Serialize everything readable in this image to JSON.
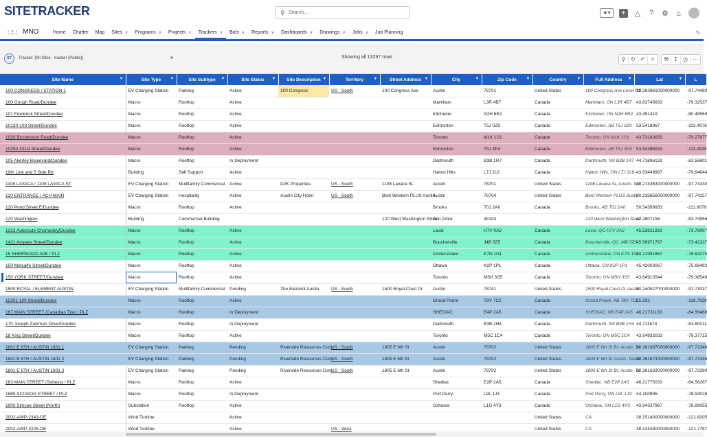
{
  "header": {
    "logo": "SITETRACKER",
    "search_placeholder": "Search..."
  },
  "nav": {
    "app_name": "MNO",
    "items": [
      {
        "label": "Home",
        "dropdown": false,
        "active": false
      },
      {
        "label": "Chatter",
        "dropdown": false,
        "active": false
      },
      {
        "label": "Map",
        "dropdown": false,
        "active": false
      },
      {
        "label": "Sites",
        "dropdown": true,
        "active": false
      },
      {
        "label": "Programs",
        "dropdown": true,
        "active": false
      },
      {
        "label": "Projects",
        "dropdown": true,
        "active": false
      },
      {
        "label": "Trackers",
        "dropdown": true,
        "active": true
      },
      {
        "label": "Bids",
        "dropdown": true,
        "active": false
      },
      {
        "label": "Reports",
        "dropdown": true,
        "active": false
      },
      {
        "label": "Dashboards",
        "dropdown": true,
        "active": false
      },
      {
        "label": "Drawings",
        "dropdown": true,
        "active": false
      },
      {
        "label": "Jobs",
        "dropdown": true,
        "active": false
      },
      {
        "label": "Job Planning",
        "dropdown": false,
        "active": false
      }
    ]
  },
  "toolbar": {
    "icon_label": "ST",
    "tracker_label": "Tracker: [All Sites - tracker (Public)]",
    "row_count": "Showing all 13297 rows"
  },
  "columns": [
    "Site Name",
    "Site Type",
    "Site Subtype",
    "Site Status",
    "Site Description",
    "Territory",
    "Street Address",
    "City",
    "Zip Code",
    "Country",
    "Full Address",
    "Lat",
    "L"
  ],
  "rows": [
    {
      "style": "",
      "cells": [
        "100 CONGRESS / STATION 1",
        "EV Charging Station",
        "Parking",
        "Active",
        "100 Congress",
        "US - South",
        "100 Congress Ave",
        "Austin",
        "78701",
        "United States",
        "100 Congress Ave Level P3",
        "30.263961000000000",
        "-97.74480"
      ]
    },
    {
      "style": "",
      "cells": [
        "100 Gough Road/Dundee",
        "Macro",
        "Rooftop",
        "Active",
        "",
        "",
        "",
        "Markham",
        "L3R 4B7",
        "Canada",
        "Markham, ON L3R 4B7",
        "43.83749933",
        "-79.32537"
      ]
    },
    {
      "style": "",
      "cells": [
        "101 Frederick Street/Dundee",
        "Macro",
        "Rooftop",
        "Active",
        "",
        "",
        "",
        "Kitchener",
        "N2H 6R2",
        "Canada",
        "Kitchener, ON N2H 6R2",
        "43.451419",
        "-80.48569"
      ]
    },
    {
      "style": "",
      "cells": [
        "10130-103 Street/Dundee",
        "Macro",
        "Rooftop",
        "Active",
        "",
        "",
        "",
        "Edmonton",
        "T5J 0Z9",
        "Canada",
        "Edmonton, AB T5J 0Z9",
        "53.5418967",
        "-113.4976"
      ]
    },
    {
      "style": "pink",
      "cells": [
        "1020 Birchmount Road/Dundee",
        "Macro",
        "Rooftop",
        "Active",
        "",
        "",
        "",
        "Toronto",
        "M1K 1S1",
        "Canada",
        "Toronto, ON M1K 1S1",
        "43.73183633",
        "-79.27877"
      ]
    },
    {
      "style": "pink",
      "cells": [
        "10250 101st Street/Dundee",
        "Macro",
        "Rooftop",
        "Active",
        "",
        "",
        "",
        "Edmonton",
        "T5J 3P4",
        "Canada",
        "Edmonton, AB T5J 3P4",
        "53.54386933",
        "-113.4935"
      ]
    },
    {
      "style": "",
      "cells": [
        "105 Akerley Boulevard/Dundee",
        "Macro",
        "Rooftop",
        "In Deployment",
        "",
        "",
        "",
        "Dartmouth",
        "B3B 1R7",
        "Canada",
        "Dartmouth, NS B3B 1R7",
        "44.71696133",
        "-63.56601"
      ]
    },
    {
      "style": "",
      "cells": [
        "10th Line and 5 Side Rd",
        "Building",
        "Self Support",
        "Active",
        "",
        "",
        "",
        "Halton Hills",
        "L7J 2L8",
        "Canada",
        "Halton Hills, ON L7J 2L8",
        "43.63449967",
        "-79.84644"
      ]
    },
    {
      "style": "",
      "cells": [
        "1108 LAVACA / 1108 LAVACA ST",
        "EV Charging Station",
        "Multifamily Commercial",
        "Active",
        "D2K Properties",
        "US - South",
        "1108 Lavaca St.",
        "Austin",
        "78701",
        "United States",
        "1108 Lavaca St, Austin, Tex",
        "30.274363000000000",
        "-97.74330"
      ]
    },
    {
      "style": "",
      "cells": [
        "120 ENTRANCE / ACH MAIN",
        "EV Charging Station",
        "Hospitality",
        "Active",
        "Austin City Hotel",
        "US - South",
        "Best Western PLUS Austin",
        "Austin",
        "78704",
        "United States",
        "Best Western PLUS Austin",
        "30.235856000000000",
        "-97.74157"
      ]
    },
    {
      "style": "",
      "cells": [
        "120 Pond Street E/Dundee",
        "Macro",
        "Rooftop",
        "Active",
        "",
        "",
        "",
        "Brooks",
        "T0J 2A0",
        "Canada",
        "Brooks, AB T0J 2A0",
        "50.54399933",
        "-111.8679"
      ]
    },
    {
      "style": "",
      "cells": [
        "120 Washington",
        "Building",
        "Commercial Building",
        "",
        "",
        "",
        "120 West Washington Stree",
        "Ann Arbor",
        "48104",
        "",
        "120 West Washington Stree",
        "42.2807158",
        "-83.74956"
      ]
    },
    {
      "style": "mint",
      "cells": [
        "1313 Autoroute Chomedey/Dundee",
        "Macro",
        "Rooftop",
        "Active",
        "",
        "",
        "",
        "Laval",
        "H7V 0A2",
        "Canada",
        "Laval, QC H7V 0A2",
        "45.53811333",
        "-73.79007"
      ]
    },
    {
      "style": "mint",
      "cells": [
        "1421 Ampere Street/Dundee",
        "Macro",
        "Rooftop",
        "Active",
        "",
        "",
        "",
        "Boucherville",
        "J4B 5Z5",
        "Canada",
        "Boucherville, QC J4B 5Z5",
        "45.56971767",
        "-73.42237"
      ]
    },
    {
      "style": "mint",
      "cells": [
        "15 SHERWOOD AVE / PLZ",
        "Macro",
        "Rooftop",
        "Active",
        "",
        "",
        "",
        "Amherstview",
        "K7N 1N1",
        "Canada",
        "Amherstview, ON K7N 1N1",
        "44.21991867",
        "-76.64275"
      ]
    },
    {
      "style": "",
      "cells": [
        "150 Metcalfe Street/Dundee",
        "Macro",
        "Rooftop",
        "Active",
        "",
        "",
        "",
        "Ottawa",
        "K2P 1P1",
        "Canada",
        "Ottawa, ON K2P 1P1",
        "45.42003067",
        "-75.69492"
      ]
    },
    {
      "style": "selected",
      "cells": [
        "150 YORK STREET/Dundeal",
        "Macro",
        "Rooftop",
        "Active",
        "",
        "",
        "",
        "Toronto",
        "M5H 3S5",
        "Canada",
        "Toronto, ON M5H 3S5",
        "43.64913544",
        "-79.38549"
      ]
    },
    {
      "style": "",
      "cells": [
        "1500 ROYAL / ELEMENT AUSTIN",
        "EV Charging Station",
        "Multifamily Commercial",
        "Pending",
        "The Element Austin",
        "US - South",
        "1500 Royal Crest Dr",
        "Austin",
        "78741",
        "United States",
        "1500 Royal Crest Dr Austin",
        "30.240527000000000",
        "-97.73037"
      ]
    },
    {
      "style": "blue",
      "cells": [
        "15301 100 Street/Dundee",
        "Macro",
        "Rooftop",
        "Active",
        "",
        "",
        "",
        "Grand Prarie",
        "T8V 7C2",
        "Canada",
        "Grand Prarie, AB T8V 7C2",
        "55.202",
        "-118.7928"
      ]
    },
    {
      "style": "blue",
      "cells": [
        "167 MAIN STREET (Canadian Tire) / PLZ",
        "Macro",
        "Rooftop",
        "In Deployment",
        "",
        "",
        "",
        "SHEDIAC",
        "E4P 2A5",
        "Canada",
        "SHEDIAC, NB E4P 2A5",
        "46.21731133",
        "-64.56469"
      ]
    },
    {
      "style": "",
      "cells": [
        "170 Joseph Zatzman Drive/Dundee",
        "Macro",
        "Rooftop",
        "In Deployment",
        "",
        "",
        "",
        "Dartmouth",
        "B3B 1H4",
        "Canada",
        "Dartmouth, NS B3B 1H4",
        "44.711674",
        "-63.60011"
      ]
    },
    {
      "style": "",
      "cells": [
        "18 King Street/Dundee",
        "Macro",
        "Rooftop",
        "Active",
        "",
        "",
        "",
        "Toronto",
        "M5C 1C4",
        "Canada",
        "Toronto, ON M5C 1C4",
        "43.64932033",
        "-79.37715"
      ]
    },
    {
      "style": "blue",
      "cells": [
        "1801 E 6TH / AUSTIN 1801 1",
        "EV Charging Station",
        "Parking",
        "Pending",
        "Riverside Resources Corp",
        "US - South",
        "1805 E 6th St",
        "Austin",
        "78702",
        "United States",
        "1805 E 6th St B1 Austin, Te",
        "30.261687000000000",
        "-97.72346"
      ]
    },
    {
      "style": "blue",
      "cells": [
        "1801 E 6TH / AUSTIN 1801 2",
        "EV Charging Station",
        "Parking",
        "Pending",
        "Riverside Resources Corp",
        "US - South",
        "1805 E 6th St",
        "Austin",
        "78702",
        "United States",
        "1805 E 6th St Austin, Texas",
        "30.261673000000000",
        "-97.72346"
      ]
    },
    {
      "style": "",
      "cells": [
        "1801 E 6TH / AUSTIN 1801 3",
        "EV Charging Station",
        "Parking",
        "Pending",
        "Riverside Resources Corp",
        "US - South",
        "1805 E 6th St",
        "Austin",
        "78702",
        "United States",
        "1805 E 6th St B1 Austin, Te",
        "30.261633000000000",
        "-97.72390"
      ]
    },
    {
      "style": "",
      "cells": [
        "183 MAIN STREET (Sobeys) / PLZ",
        "Macro",
        "Rooftop",
        "Active",
        "",
        "",
        "",
        "Shediac",
        "E2P 2A5",
        "Canada",
        "Shediac, NB E2P 2A5",
        "46.21775033",
        "-64.56267"
      ]
    },
    {
      "style": "",
      "cells": [
        "1865 SCUGOG STREET / PLZ",
        "Macro",
        "Rooftop",
        "In Deployment",
        "",
        "",
        "",
        "Port Perry",
        "L9L 1J3",
        "Canada",
        "Port Perry, ON L9L 1J3",
        "44.100995",
        "-78.94026"
      ]
    },
    {
      "style": "",
      "cells": [
        "1900 Simcoe Street (North)",
        "Substation",
        "Rooftop",
        "Active",
        "",
        "",
        "",
        "Oshawa",
        "L1G 4Y3",
        "Canada",
        "Oshawa, ON L1G 4Y3",
        "43.94337967",
        "-78.89055"
      ]
    },
    {
      "style": "",
      "cells": [
        "2002-AWP-2343-OE",
        "Wind Turbine",
        "",
        "Active",
        "",
        "",
        "",
        "",
        "",
        "United States",
        "CA",
        "38.151400000000000",
        "-121.8205"
      ]
    },
    {
      "style": "",
      "cells": [
        "2002-AWP-3225-OE",
        "Wind Turbine",
        "",
        "Active",
        "",
        "US - West",
        "",
        "",
        "",
        "United States",
        "CA",
        "38.134390000000000",
        "-121.7757"
      ]
    }
  ],
  "colors": {
    "accent": "#1b5fc7",
    "row_pink": "#dcaebf",
    "row_mint": "#7ff2ce",
    "row_blue": "#a8c9e6",
    "highlight_yellow": "#fde9a6"
  }
}
